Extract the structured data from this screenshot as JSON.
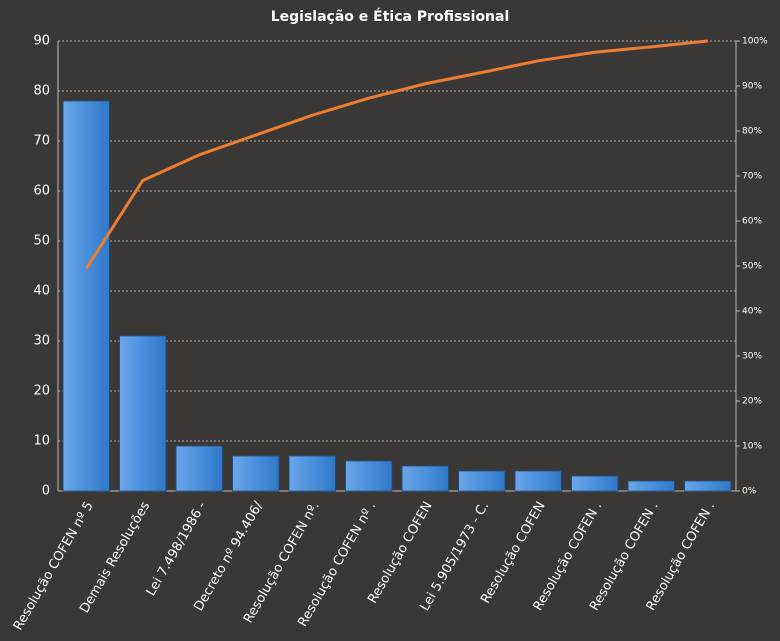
{
  "chart_data": {
    "type": "bar",
    "title": "Legislação e Ética Profissional",
    "categories": [
      "Resolução COFEN nº 5",
      "Demais Resoluções",
      "Lei 7.498/1986 -",
      "Decreto nº 94.406/",
      "Resolução COFEN nº.",
      "Resolução COFEN nº .",
      "Resolução COFEN",
      "Lei 5.905/1973 - C.",
      "Resolução COFEN",
      "Resolução COFEN .",
      "Resolução COFEN .",
      "Resolução COFEN ."
    ],
    "series": [
      {
        "type": "bar",
        "color": "#4a8fdb",
        "values": [
          78,
          31,
          9,
          7,
          7,
          6,
          5,
          4,
          4,
          3,
          2,
          2
        ]
      },
      {
        "type": "line",
        "axis": "y2",
        "color": "#ed7d31",
        "values": [
          49.4,
          69.0,
          74.7,
          79.1,
          83.5,
          87.3,
          90.5,
          93.0,
          95.6,
          97.5,
          98.7,
          100
        ]
      }
    ],
    "ylim": [
      0,
      90
    ],
    "yticks": [
      0,
      10,
      20,
      30,
      40,
      50,
      60,
      70,
      80,
      90
    ],
    "y2lim": [
      0,
      100
    ],
    "y2ticks": [
      {
        "value": 0,
        "label": "0%"
      },
      {
        "value": 10,
        "label": "10%"
      },
      {
        "value": 20,
        "label": "20%"
      },
      {
        "value": 30,
        "label": "30%"
      },
      {
        "value": 40,
        "label": "40%"
      },
      {
        "value": 50,
        "label": "50%"
      },
      {
        "value": 60,
        "label": "60%"
      },
      {
        "value": 70,
        "label": "70%"
      },
      {
        "value": 80,
        "label": "80%"
      },
      {
        "value": 90,
        "label": "90%"
      },
      {
        "value": 100,
        "label": "100%"
      }
    ],
    "grid": true
  }
}
